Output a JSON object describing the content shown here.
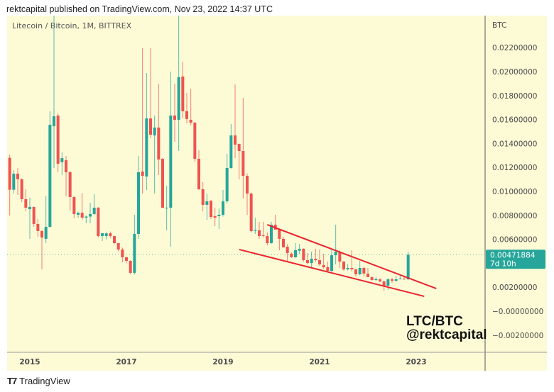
{
  "header": {
    "published": "rektcapital published on TradingView.com, Nov 23, 2022 14:37 UTC"
  },
  "symbol_legend": "Litecoin / Bitcoin, 1M, BITTREX",
  "footer": {
    "brand": "TradingView",
    "logo_icon": "tradingview-logo-icon"
  },
  "colors": {
    "background": "#fdfbd6",
    "up": "#26a69a",
    "down": "#ef5350",
    "trendline": "#e8262e",
    "price_label": "#26a69a"
  },
  "price_label": {
    "value": "0.00471884",
    "countdown": "7d 10h"
  },
  "annotation": {
    "line1": "LTC/BTC",
    "line2": "@rektcapital"
  },
  "chart_data": {
    "type": "candlestick",
    "interval": "1M",
    "y_unit": "BTC",
    "ylim": [
      -0.0025,
      0.0246
    ],
    "grid": false,
    "y_ticks": [
      {
        "value": 0.022,
        "label": "0.02200000"
      },
      {
        "value": 0.02,
        "label": "0.02000000"
      },
      {
        "value": 0.018,
        "label": "0.01800000"
      },
      {
        "value": 0.016,
        "label": "0.01600000"
      },
      {
        "value": 0.014,
        "label": "0.01400000"
      },
      {
        "value": 0.012,
        "label": "0.01200000"
      },
      {
        "value": 0.01,
        "label": "0.01000000"
      },
      {
        "value": 0.008,
        "label": "0.00800000"
      },
      {
        "value": 0.006,
        "label": "0.00600000"
      },
      {
        "value": 0.002,
        "label": "0.00200000"
      },
      {
        "value": 0.0,
        "label": "−0.00000000"
      },
      {
        "value": -0.002,
        "label": "−0.00200000"
      }
    ],
    "x_ticks": [
      {
        "date": "2015-01",
        "label": "2015"
      },
      {
        "date": "2017-01",
        "label": "2017"
      },
      {
        "date": "2019-01",
        "label": "2019"
      },
      {
        "date": "2021-01",
        "label": "2021"
      },
      {
        "date": "2023-01",
        "label": "2023"
      }
    ],
    "candle_fields": [
      "date",
      "open",
      "high",
      "low",
      "close"
    ],
    "candles": [
      [
        "2014-08",
        0.0128,
        0.01308,
        0.00799,
        0.01014
      ],
      [
        "2014-09",
        0.01014,
        0.01177,
        0.00982,
        0.01148
      ],
      [
        "2014-10",
        0.01148,
        0.01195,
        0.0097,
        0.01101
      ],
      [
        "2014-11",
        0.01101,
        0.0111,
        0.00911,
        0.00935
      ],
      [
        "2014-12",
        0.00935,
        0.01018,
        0.00834,
        0.00864
      ],
      [
        "2015-01",
        0.00852,
        0.00947,
        0.00604,
        0.0087
      ],
      [
        "2015-02",
        0.0087,
        0.00875,
        0.00704,
        0.00728
      ],
      [
        "2015-03",
        0.00728,
        0.00769,
        0.00621,
        0.00669
      ],
      [
        "2015-04",
        0.00669,
        0.0068,
        0.00349,
        0.00615
      ],
      [
        "2015-05",
        0.00604,
        0.00959,
        0.00568,
        0.00704
      ],
      [
        "2015-06",
        0.00704,
        0.01669,
        0.007,
        0.01556
      ],
      [
        "2015-07",
        0.01544,
        0.026,
        0.01195,
        0.01627
      ],
      [
        "2015-08",
        0.01633,
        0.0165,
        0.0116,
        0.01231
      ],
      [
        "2015-09",
        0.01243,
        0.01325,
        0.01136,
        0.01278
      ],
      [
        "2015-10",
        0.0126,
        0.01296,
        0.00959,
        0.0116
      ],
      [
        "2015-11",
        0.0116,
        0.0117,
        0.0084,
        0.00953
      ],
      [
        "2015-12",
        0.00953,
        0.0096,
        0.00775,
        0.00811
      ],
      [
        "2016-01",
        0.00805,
        0.0083,
        0.00781,
        0.00822
      ],
      [
        "2016-02",
        0.00822,
        0.00988,
        0.00763,
        0.00781
      ],
      [
        "2016-03",
        0.00781,
        0.008,
        0.00734,
        0.0079
      ],
      [
        "2016-04",
        0.0079,
        0.00905,
        0.00734,
        0.00811
      ],
      [
        "2016-05",
        0.00811,
        0.00976,
        0.00805,
        0.00864
      ],
      [
        "2016-06",
        0.00864,
        0.0087,
        0.00615,
        0.00627
      ],
      [
        "2016-07",
        0.00627,
        0.0065,
        0.00586,
        0.00651
      ],
      [
        "2016-08",
        0.00627,
        0.0066,
        0.006,
        0.0065
      ],
      [
        "2016-09",
        0.0065,
        0.00665,
        0.0061,
        0.00627
      ],
      [
        "2016-10",
        0.00627,
        0.0063,
        0.00556,
        0.00568
      ],
      [
        "2016-11",
        0.00568,
        0.0057,
        0.005,
        0.00515
      ],
      [
        "2016-12",
        0.00515,
        0.0053,
        0.00408,
        0.0045
      ],
      [
        "2017-01",
        0.0045,
        0.00452,
        0.004,
        0.0042
      ],
      [
        "2017-02",
        0.0042,
        0.00425,
        0.00308,
        0.0032
      ],
      [
        "2017-03",
        0.0032,
        0.00805,
        0.00305,
        0.00645
      ],
      [
        "2017-04",
        0.00645,
        0.01296,
        0.00604,
        0.0116
      ],
      [
        "2017-05",
        0.01166,
        0.02195,
        0.00982,
        0.0113
      ],
      [
        "2017-06",
        0.01124,
        0.01988,
        0.01012,
        0.01609
      ],
      [
        "2017-07",
        0.01609,
        0.02195,
        0.01444,
        0.01473
      ],
      [
        "2017-08",
        0.01467,
        0.01633,
        0.00982,
        0.01533
      ],
      [
        "2017-09",
        0.01533,
        0.01899,
        0.01136,
        0.01266
      ],
      [
        "2017-10",
        0.01272,
        0.0128,
        0.0086,
        0.00864
      ],
      [
        "2017-11",
        0.00858,
        0.01047,
        0.00675,
        0.00864
      ],
      [
        "2017-12",
        0.00864,
        0.02,
        0.00538,
        0.01633
      ],
      [
        "2018-01",
        0.01633,
        0.01899,
        0.01414,
        0.01598
      ],
      [
        "2018-02",
        0.01598,
        0.026,
        0.01337,
        0.01953
      ],
      [
        "2018-03",
        0.01959,
        0.02083,
        0.01609,
        0.01669
      ],
      [
        "2018-04",
        0.01669,
        0.01822,
        0.01568,
        0.01604
      ],
      [
        "2018-05",
        0.01598,
        0.01858,
        0.0155,
        0.01574
      ],
      [
        "2018-06",
        0.01574,
        0.0158,
        0.01248,
        0.01272
      ],
      [
        "2018-07",
        0.01272,
        0.01343,
        0.0101,
        0.01018
      ],
      [
        "2018-08",
        0.01018,
        0.01077,
        0.00834,
        0.00888
      ],
      [
        "2018-09",
        0.00888,
        0.00982,
        0.00763,
        0.00917
      ],
      [
        "2018-10",
        0.00923,
        0.00925,
        0.0077,
        0.00787
      ],
      [
        "2018-11",
        0.00793,
        0.00864,
        0.0071,
        0.00781
      ],
      [
        "2018-12",
        0.00793,
        0.00858,
        0.00686,
        0.00805
      ],
      [
        "2019-01",
        0.00805,
        0.01012,
        0.0079,
        0.00917
      ],
      [
        "2019-02",
        0.00917,
        0.01314,
        0.00899,
        0.01195
      ],
      [
        "2019-03",
        0.01195,
        0.01562,
        0.0119,
        0.01467
      ],
      [
        "2019-04",
        0.01467,
        0.01893,
        0.01278,
        0.0139
      ],
      [
        "2019-05",
        0.01396,
        0.014,
        0.01101,
        0.01337
      ],
      [
        "2019-06",
        0.01337,
        0.01781,
        0.00941,
        0.0113
      ],
      [
        "2019-07",
        0.0113,
        0.0115,
        0.00805,
        0.00982
      ],
      [
        "2019-08",
        0.00982,
        0.0099,
        0.00657,
        0.00669
      ],
      [
        "2019-09",
        0.00669,
        0.00781,
        0.00645,
        0.00675
      ],
      [
        "2019-10",
        0.00675,
        0.00746,
        0.00604,
        0.00627
      ],
      [
        "2019-11",
        0.00633,
        0.00746,
        0.00615,
        0.00627
      ],
      [
        "2019-12",
        0.00627,
        0.00657,
        0.0055,
        0.00568
      ],
      [
        "2020-01",
        0.00568,
        0.00746,
        0.0056,
        0.00722
      ],
      [
        "2020-02",
        0.00722,
        0.00805,
        0.0069,
        0.0068
      ],
      [
        "2020-03",
        0.0068,
        0.0069,
        0.00509,
        0.00604
      ],
      [
        "2020-04",
        0.00604,
        0.0062,
        0.0053,
        0.00533
      ],
      [
        "2020-05",
        0.00538,
        0.0056,
        0.0042,
        0.00485
      ],
      [
        "2020-06",
        0.0048,
        0.0049,
        0.00445,
        0.0045
      ],
      [
        "2020-07",
        0.0045,
        0.00568,
        0.00445,
        0.00509
      ],
      [
        "2020-08",
        0.00505,
        0.00562,
        0.00479,
        0.00521
      ],
      [
        "2020-09",
        0.00521,
        0.00525,
        0.00414,
        0.00426
      ],
      [
        "2020-10",
        0.00426,
        0.00485,
        0.00391,
        0.00402
      ],
      [
        "2020-11",
        0.00402,
        0.00497,
        0.00367,
        0.00438
      ],
      [
        "2020-12",
        0.00438,
        0.00521,
        0.0041,
        0.00426
      ],
      [
        "2021-01",
        0.00426,
        0.00515,
        0.00379,
        0.00391
      ],
      [
        "2021-02",
        0.00385,
        0.00479,
        0.00355,
        0.00367
      ],
      [
        "2021-03",
        0.00367,
        0.00414,
        0.00331,
        0.00337
      ],
      [
        "2021-04",
        0.00337,
        0.00515,
        0.00325,
        0.00467
      ],
      [
        "2021-05",
        0.00467,
        0.00722,
        0.00391,
        0.00497
      ],
      [
        "2021-06",
        0.00497,
        0.0051,
        0.00361,
        0.00414
      ],
      [
        "2021-07",
        0.00414,
        0.0042,
        0.00337,
        0.00349
      ],
      [
        "2021-08",
        0.00349,
        0.00396,
        0.0034,
        0.00361
      ],
      [
        "2021-09",
        0.00361,
        0.00509,
        0.00331,
        0.00349
      ],
      [
        "2021-10",
        0.00349,
        0.00355,
        0.0029,
        0.00308
      ],
      [
        "2021-11",
        0.00308,
        0.0042,
        0.003,
        0.00361
      ],
      [
        "2021-12",
        0.00361,
        0.0037,
        0.0029,
        0.00314
      ],
      [
        "2022-01",
        0.00314,
        0.00361,
        0.0029,
        0.00284
      ],
      [
        "2022-02",
        0.00284,
        0.0029,
        0.00255,
        0.0026
      ],
      [
        "2022-03",
        0.0026,
        0.00284,
        0.0025,
        0.00268
      ],
      [
        "2022-04",
        0.00266,
        0.00275,
        0.0024,
        0.00249
      ],
      [
        "2022-05",
        0.00249,
        0.00255,
        0.0017,
        0.00213
      ],
      [
        "2022-06",
        0.00213,
        0.00275,
        0.00178,
        0.00266
      ],
      [
        "2022-07",
        0.00266,
        0.0028,
        0.00235,
        0.00254
      ],
      [
        "2022-08",
        0.00254,
        0.00296,
        0.00245,
        0.00266
      ],
      [
        "2022-09",
        0.00266,
        0.00296,
        0.00265,
        0.00272
      ],
      [
        "2022-10",
        0.00272,
        0.00285,
        0.00262,
        0.00266
      ],
      [
        "2022-11",
        0.00266,
        0.00497,
        0.0026,
        0.00471884
      ]
    ],
    "last_price": 0.00471884,
    "trendlines": [
      {
        "from": [
          "2019-12",
          0.00722
        ],
        "to": [
          "2023-06",
          0.00189
        ]
      },
      {
        "from": [
          "2019-05",
          0.00515
        ],
        "to": [
          "2023-03",
          0.00124
        ]
      }
    ]
  }
}
